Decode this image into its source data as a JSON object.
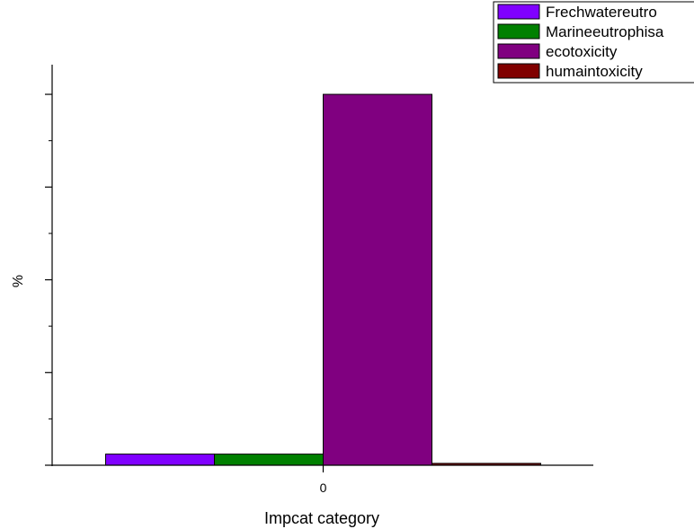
{
  "chart_data": {
    "type": "bar",
    "categories": [
      "0"
    ],
    "series": [
      {
        "name": "Frechwatereutro",
        "color": "#8000ff",
        "values": [
          3
        ]
      },
      {
        "name": "Marineeutrophisa",
        "color": "#008000",
        "values": [
          3
        ]
      },
      {
        "name": "ecotoxicity",
        "color": "#800080",
        "values": [
          100
        ]
      },
      {
        "name": "humaintoxicity",
        "color": "#800000",
        "values": [
          0.5
        ]
      }
    ],
    "title": "",
    "xlabel": "Impcat category",
    "ylabel": "%",
    "ylim": [
      0,
      108
    ],
    "y_major_ticks": [
      0,
      25,
      50,
      75,
      100
    ],
    "y_tick_labels_shown": false,
    "grid": false,
    "legend_position": "top-right"
  }
}
